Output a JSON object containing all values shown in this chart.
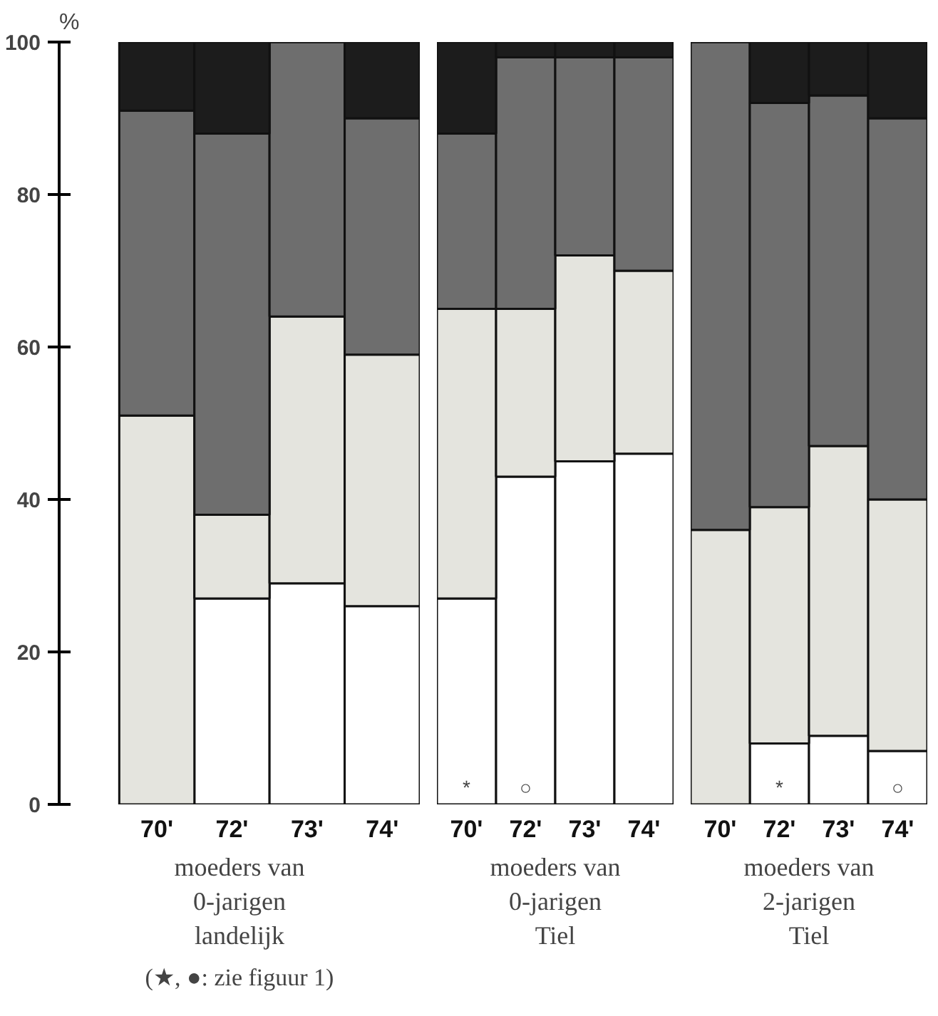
{
  "chart_data": [
    {
      "type": "bar",
      "stacked": true,
      "ylabel": "%",
      "xlabel": "moeders van\n0-jarigen\nlandelijk",
      "categories": [
        "70'",
        "72'",
        "73'",
        "74'"
      ],
      "ylim": [
        0,
        100
      ],
      "yticks": [
        0,
        20,
        40,
        60,
        80,
        100
      ],
      "series": [
        {
          "color": "#ffffff",
          "values": [
            0,
            27,
            29,
            26
          ]
        },
        {
          "color": "#e4e4de",
          "values": [
            51,
            11,
            35,
            33
          ]
        },
        {
          "color": "#6e6e6e",
          "values": [
            40,
            50,
            36,
            31
          ]
        },
        {
          "color": "#1c1c1c",
          "values": [
            9,
            12,
            0,
            10
          ]
        }
      ],
      "annotations": [
        "(★, ●: zie figuur 1)"
      ]
    },
    {
      "type": "bar",
      "stacked": true,
      "xlabel": "moeders van\n0-jarigen\nTiel",
      "categories": [
        "70'",
        "72'",
        "73'",
        "74'"
      ],
      "ylim": [
        0,
        100
      ],
      "tick_labels": "x",
      "series": [
        {
          "color": "#ffffff",
          "values": [
            27,
            43,
            45,
            46
          ],
          "value_labels": [
            "*",
            "○",
            null,
            null
          ]
        },
        {
          "color": "#e4e4de",
          "values": [
            38,
            22,
            27,
            24
          ]
        },
        {
          "color": "#6e6e6e",
          "values": [
            23,
            33,
            26,
            28
          ]
        },
        {
          "color": "#1c1c1c",
          "values": [
            12,
            2,
            2,
            2
          ]
        }
      ]
    },
    {
      "type": "bar",
      "stacked": true,
      "xlabel": "moeders van\n2-jarigen\nTiel",
      "categories": [
        "70'",
        "72'",
        "73'",
        "74'"
      ],
      "ylim": [
        0,
        100
      ],
      "tick_labels": "x",
      "series": [
        {
          "color": "#ffffff",
          "values": [
            0,
            8,
            9,
            7
          ],
          "value_labels": [
            null,
            "*",
            null,
            "○"
          ]
        },
        {
          "color": "#e4e4de",
          "values": [
            36,
            31,
            38,
            33
          ]
        },
        {
          "color": "#6e6e6e",
          "values": [
            64,
            53,
            46,
            50
          ]
        },
        {
          "color": "#1c1c1c",
          "values": [
            0,
            8,
            7,
            10
          ]
        }
      ]
    }
  ]
}
